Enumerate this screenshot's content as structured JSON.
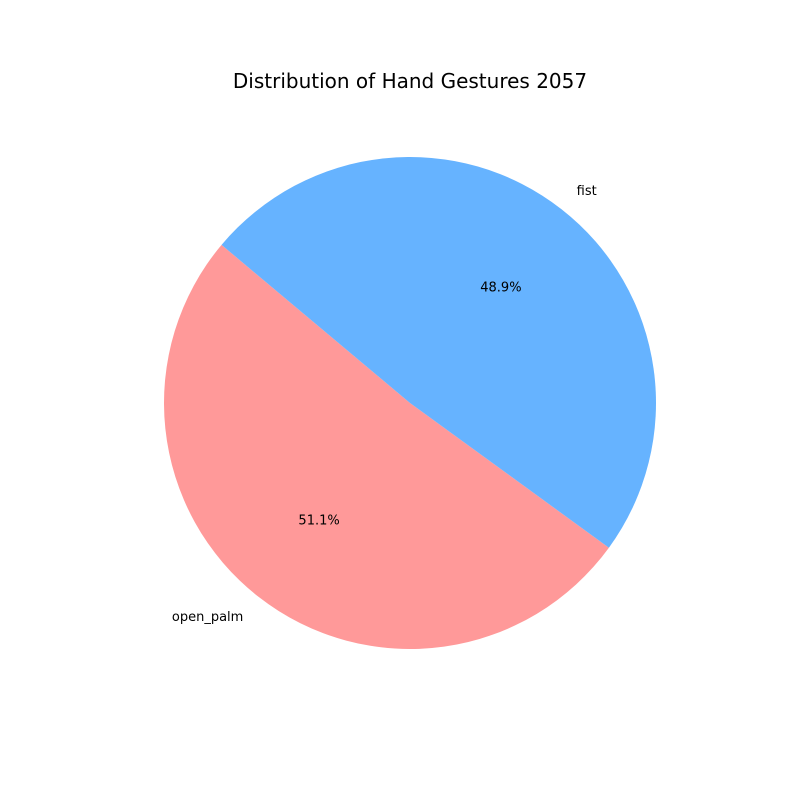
{
  "chart_data": {
    "type": "pie",
    "title": "Distribution of Hand Gestures 2057",
    "slices": [
      {
        "label": "open_palm",
        "value": 51.1,
        "pct_label": "51.1%",
        "color": "#ff9999"
      },
      {
        "label": "fist",
        "value": 48.9,
        "pct_label": "48.9%",
        "color": "#66b3ff"
      }
    ],
    "start_angle_deg": 140,
    "direction": "counterclockwise"
  }
}
